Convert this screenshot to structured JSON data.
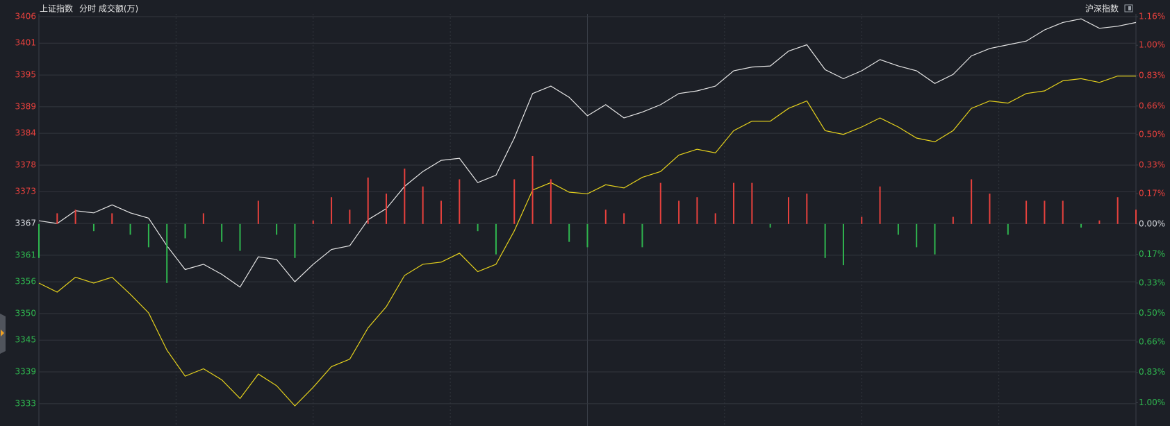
{
  "chart_data": {
    "type": "line",
    "title": "上证指数",
    "subtitle": "分时 成交额(万)",
    "colors": {
      "up": "#e8413d",
      "down": "#2fb74f",
      "flat": "#d6d9de"
    },
    "ylim": [
      3328.8,
      3406
    ],
    "yticks": [
      3406,
      3401,
      3395,
      3389,
      3384,
      3378,
      3373,
      3367,
      3361,
      3356,
      3350,
      3345,
      3339,
      3333
    ],
    "y2lim": [
      -1.13,
      1.16
    ],
    "y2ticks": [
      {
        "value": 1.16,
        "label": "1.16%"
      },
      {
        "value": 1.0,
        "label": "1.00%"
      },
      {
        "value": 0.83,
        "label": "0.83%"
      },
      {
        "value": 0.66,
        "label": "0.66%"
      },
      {
        "value": 0.5,
        "label": "0.50%"
      },
      {
        "value": 0.33,
        "label": "0.33%"
      },
      {
        "value": 0.17,
        "label": "0.17%"
      },
      {
        "value": 0,
        "label": "0.00%"
      },
      {
        "value": -0.17,
        "label": "0.17%"
      },
      {
        "value": -0.33,
        "label": "0.33%"
      },
      {
        "value": -0.5,
        "label": "0.50%"
      },
      {
        "value": -0.66,
        "label": "0.66%"
      },
      {
        "value": -0.83,
        "label": "0.83%"
      },
      {
        "value": -1.0,
        "label": "1.00%"
      }
    ],
    "grid": true,
    "series": [
      {
        "color": "#e6e6e6",
        "values": [
          3367.5,
          3367,
          3369.4,
          3369,
          3370.5,
          3369,
          3368,
          3362.8,
          3358.3,
          3359.3,
          3357.4,
          3355,
          3360.7,
          3360.2,
          3356,
          3359.3,
          3362.1,
          3362.8,
          3367.7,
          3369.8,
          3374,
          3376.8,
          3378.9,
          3379.3,
          3374.7,
          3376.1,
          3383.1,
          3391.5,
          3392.9,
          3390.8,
          3387.3,
          3389.4,
          3386.9,
          3388,
          3389.4,
          3391.5,
          3392,
          3392.9,
          3395.8,
          3396.5,
          3396.7,
          3399.5,
          3400.7,
          3396,
          3394.3,
          3395.8,
          3397.9,
          3396.7,
          3395.8,
          3393.4,
          3395.1,
          3398.6,
          3400,
          3400.7,
          3401.4,
          3403.5,
          3404.9,
          3405.6,
          3403.8,
          3404.2,
          3404.9
        ]
      },
      {
        "name": "沪深指数",
        "color": "#e6d21c",
        "values": [
          3355.75,
          3354.06,
          3356.87,
          3355.75,
          3356.87,
          3353.64,
          3350.13,
          3343.11,
          3338.2,
          3339.6,
          3337.5,
          3334,
          3338.6,
          3336.4,
          3332.6,
          3336.1,
          3340,
          3341.4,
          3347.3,
          3351.3,
          3357.2,
          3359.3,
          3359.7,
          3361.4,
          3357.9,
          3359.3,
          3365.6,
          3373.3,
          3374.7,
          3372.9,
          3372.6,
          3374.3,
          3373.7,
          3375.7,
          3376.8,
          3379.9,
          3381,
          3380.3,
          3384.5,
          3386.3,
          3386.3,
          3388.7,
          3390.1,
          3384.5,
          3383.8,
          3385.2,
          3386.9,
          3385.2,
          3383.1,
          3382.4,
          3384.5,
          3388.7,
          3390.1,
          3389.7,
          3391.5,
          3392,
          3393.9,
          3394.3,
          3393.6,
          3394.8,
          3394.8
        ]
      },
      {
        "type": "bar",
        "axis": "y2",
        "values": [
          -0.19,
          0.06,
          0.08,
          -0.04,
          0.06,
          -0.06,
          -0.13,
          -0.33,
          -0.08,
          0.06,
          -0.1,
          -0.15,
          0.13,
          -0.06,
          -0.19,
          0.02,
          0.15,
          0.08,
          0.26,
          0.17,
          0.31,
          0.21,
          0.13,
          0.25,
          -0.04,
          -0.17,
          0.25,
          0.38,
          0.25,
          -0.1,
          -0.13,
          0.08,
          0.06,
          -0.13,
          0.23,
          0.13,
          0.15,
          0.06,
          0.23,
          0.23,
          -0.02,
          0.15,
          0.17,
          -0.19,
          -0.23,
          0.04,
          0.21,
          -0.06,
          -0.13,
          -0.17,
          0.04,
          0.25,
          0.17,
          -0.06,
          0.13,
          0.13,
          0.13,
          -0.02,
          0.02,
          0.15,
          0.08
        ]
      }
    ]
  }
}
